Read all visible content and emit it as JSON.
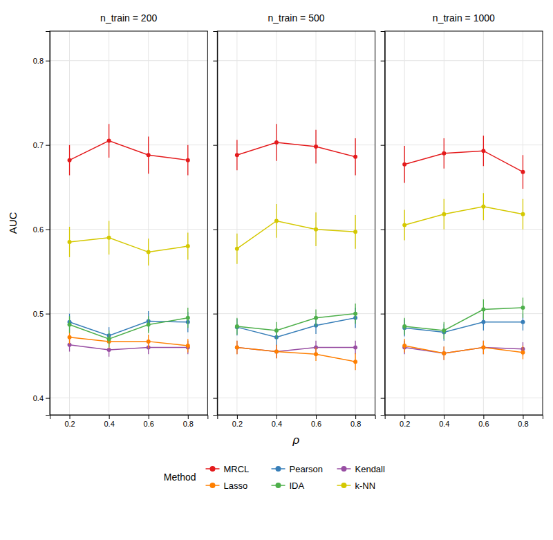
{
  "chart_data": [
    {
      "type": "line",
      "title": "n_train = 200",
      "ylabel": "AUC",
      "x": [
        0.2,
        0.4,
        0.6,
        0.8
      ],
      "xlim": [
        0.1,
        0.9
      ],
      "xticks": [
        0.2,
        0.4,
        0.6,
        0.8
      ],
      "ylim": [
        0.38,
        0.835
      ],
      "yticks": [
        0.4,
        0.5,
        0.6,
        0.7,
        0.8
      ],
      "grid": true,
      "legend": "bottom",
      "legend_title": "Method",
      "marker": "circle",
      "series": [
        {
          "name": "MRCL",
          "color": "#E41A1C",
          "values": [
            0.682,
            0.705,
            0.688,
            0.682
          ],
          "errors": [
            0.018,
            0.02,
            0.022,
            0.018
          ]
        },
        {
          "name": "Pearson",
          "color": "#377EB8",
          "values": [
            0.49,
            0.474,
            0.491,
            0.49
          ],
          "errors": [
            0.01,
            0.01,
            0.012,
            0.012
          ]
        },
        {
          "name": "Kendall",
          "color": "#984EA3",
          "values": [
            0.463,
            0.457,
            0.46,
            0.46
          ],
          "errors": [
            0.008,
            0.008,
            0.008,
            0.008
          ]
        },
        {
          "name": "Lasso",
          "color": "#FF7F00",
          "values": [
            0.472,
            0.467,
            0.467,
            0.462
          ],
          "errors": [
            0.008,
            0.008,
            0.008,
            0.008
          ]
        },
        {
          "name": "IDA",
          "color": "#4DAF4A",
          "values": [
            0.487,
            0.47,
            0.487,
            0.495
          ],
          "errors": [
            0.01,
            0.01,
            0.01,
            0.012
          ]
        },
        {
          "name": "k-NN",
          "color": "#D4C800",
          "values": [
            0.585,
            0.59,
            0.573,
            0.58
          ],
          "errors": [
            0.018,
            0.02,
            0.016,
            0.016
          ]
        }
      ]
    },
    {
      "type": "line",
      "title": "n_train = 500",
      "xlabel": "ρ",
      "x": [
        0.2,
        0.4,
        0.6,
        0.8
      ],
      "xlim": [
        0.1,
        0.9
      ],
      "xticks": [
        0.2,
        0.4,
        0.6,
        0.8
      ],
      "ylim": [
        0.38,
        0.835
      ],
      "yticks": [
        0.4,
        0.5,
        0.6,
        0.7,
        0.8
      ],
      "grid": true,
      "tick_labels": "x",
      "marker": "circle",
      "series": [
        {
          "name": "MRCL",
          "color": "#E41A1C",
          "values": [
            0.688,
            0.703,
            0.698,
            0.686
          ],
          "errors": [
            0.018,
            0.022,
            0.02,
            0.022
          ]
        },
        {
          "name": "Pearson",
          "color": "#377EB8",
          "values": [
            0.484,
            0.472,
            0.486,
            0.495
          ],
          "errors": [
            0.01,
            0.01,
            0.01,
            0.012
          ]
        },
        {
          "name": "Kendall",
          "color": "#984EA3",
          "values": [
            0.46,
            0.455,
            0.46,
            0.46
          ],
          "errors": [
            0.008,
            0.008,
            0.008,
            0.008
          ]
        },
        {
          "name": "Lasso",
          "color": "#FF7F00",
          "values": [
            0.46,
            0.455,
            0.452,
            0.443
          ],
          "errors": [
            0.008,
            0.008,
            0.008,
            0.01
          ]
        },
        {
          "name": "IDA",
          "color": "#4DAF4A",
          "values": [
            0.485,
            0.48,
            0.495,
            0.5
          ],
          "errors": [
            0.01,
            0.01,
            0.01,
            0.012
          ]
        },
        {
          "name": "k-NN",
          "color": "#D4C800",
          "values": [
            0.577,
            0.61,
            0.6,
            0.597
          ],
          "errors": [
            0.018,
            0.02,
            0.02,
            0.02
          ]
        }
      ]
    },
    {
      "type": "line",
      "title": "n_train = 1000",
      "x": [
        0.2,
        0.4,
        0.6,
        0.8
      ],
      "xlim": [
        0.1,
        0.9
      ],
      "xticks": [
        0.2,
        0.4,
        0.6,
        0.8
      ],
      "ylim": [
        0.38,
        0.835
      ],
      "yticks": [
        0.4,
        0.5,
        0.6,
        0.7,
        0.8
      ],
      "grid": true,
      "tick_labels": "x",
      "marker": "circle",
      "series": [
        {
          "name": "MRCL",
          "color": "#E41A1C",
          "values": [
            0.677,
            0.69,
            0.693,
            0.668
          ],
          "errors": [
            0.022,
            0.018,
            0.018,
            0.02
          ]
        },
        {
          "name": "Pearson",
          "color": "#377EB8",
          "values": [
            0.483,
            0.478,
            0.49,
            0.49
          ],
          "errors": [
            0.01,
            0.01,
            0.01,
            0.01
          ]
        },
        {
          "name": "Kendall",
          "color": "#984EA3",
          "values": [
            0.46,
            0.453,
            0.46,
            0.458
          ],
          "errors": [
            0.008,
            0.008,
            0.008,
            0.008
          ]
        },
        {
          "name": "Lasso",
          "color": "#FF7F00",
          "values": [
            0.462,
            0.453,
            0.46,
            0.454
          ],
          "errors": [
            0.008,
            0.008,
            0.008,
            0.008
          ]
        },
        {
          "name": "IDA",
          "color": "#4DAF4A",
          "values": [
            0.485,
            0.48,
            0.505,
            0.507
          ],
          "errors": [
            0.01,
            0.01,
            0.012,
            0.012
          ]
        },
        {
          "name": "k-NN",
          "color": "#D4C800",
          "values": [
            0.605,
            0.618,
            0.627,
            0.618
          ],
          "errors": [
            0.018,
            0.018,
            0.016,
            0.018
          ]
        }
      ]
    }
  ]
}
